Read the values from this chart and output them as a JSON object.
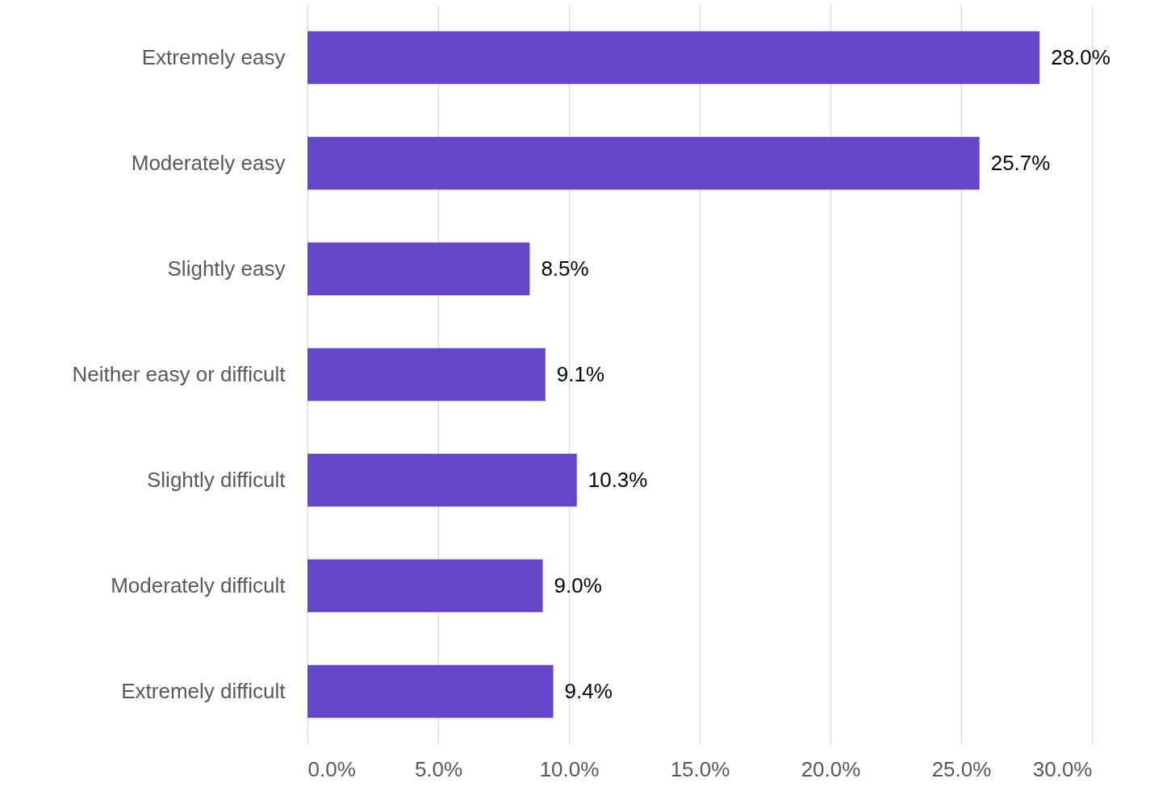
{
  "chart_data": {
    "type": "bar",
    "orientation": "horizontal",
    "categories": [
      "Extremely easy",
      "Moderately easy",
      "Slightly easy",
      "Neither easy or difficult",
      "Slightly difficult",
      "Moderately difficult",
      "Extremely difficult"
    ],
    "values": [
      28.0,
      25.7,
      8.5,
      9.1,
      10.3,
      9.0,
      9.4
    ],
    "value_labels": [
      "28.0%",
      "25.7%",
      "8.5%",
      "9.1%",
      "10.3%",
      "9.0%",
      "9.4%"
    ],
    "color": "#6546ca",
    "xlim": [
      0,
      30
    ],
    "xticks": [
      {
        "value": 0,
        "label": "0.0%"
      },
      {
        "value": 5,
        "label": "5.0%"
      },
      {
        "value": 10,
        "label": "10.0%"
      },
      {
        "value": 15,
        "label": "15.0%"
      },
      {
        "value": 20,
        "label": "20.0%"
      },
      {
        "value": 25,
        "label": "25.0%"
      },
      {
        "value": 30,
        "label": "30.0%"
      }
    ],
    "grid": "x"
  }
}
